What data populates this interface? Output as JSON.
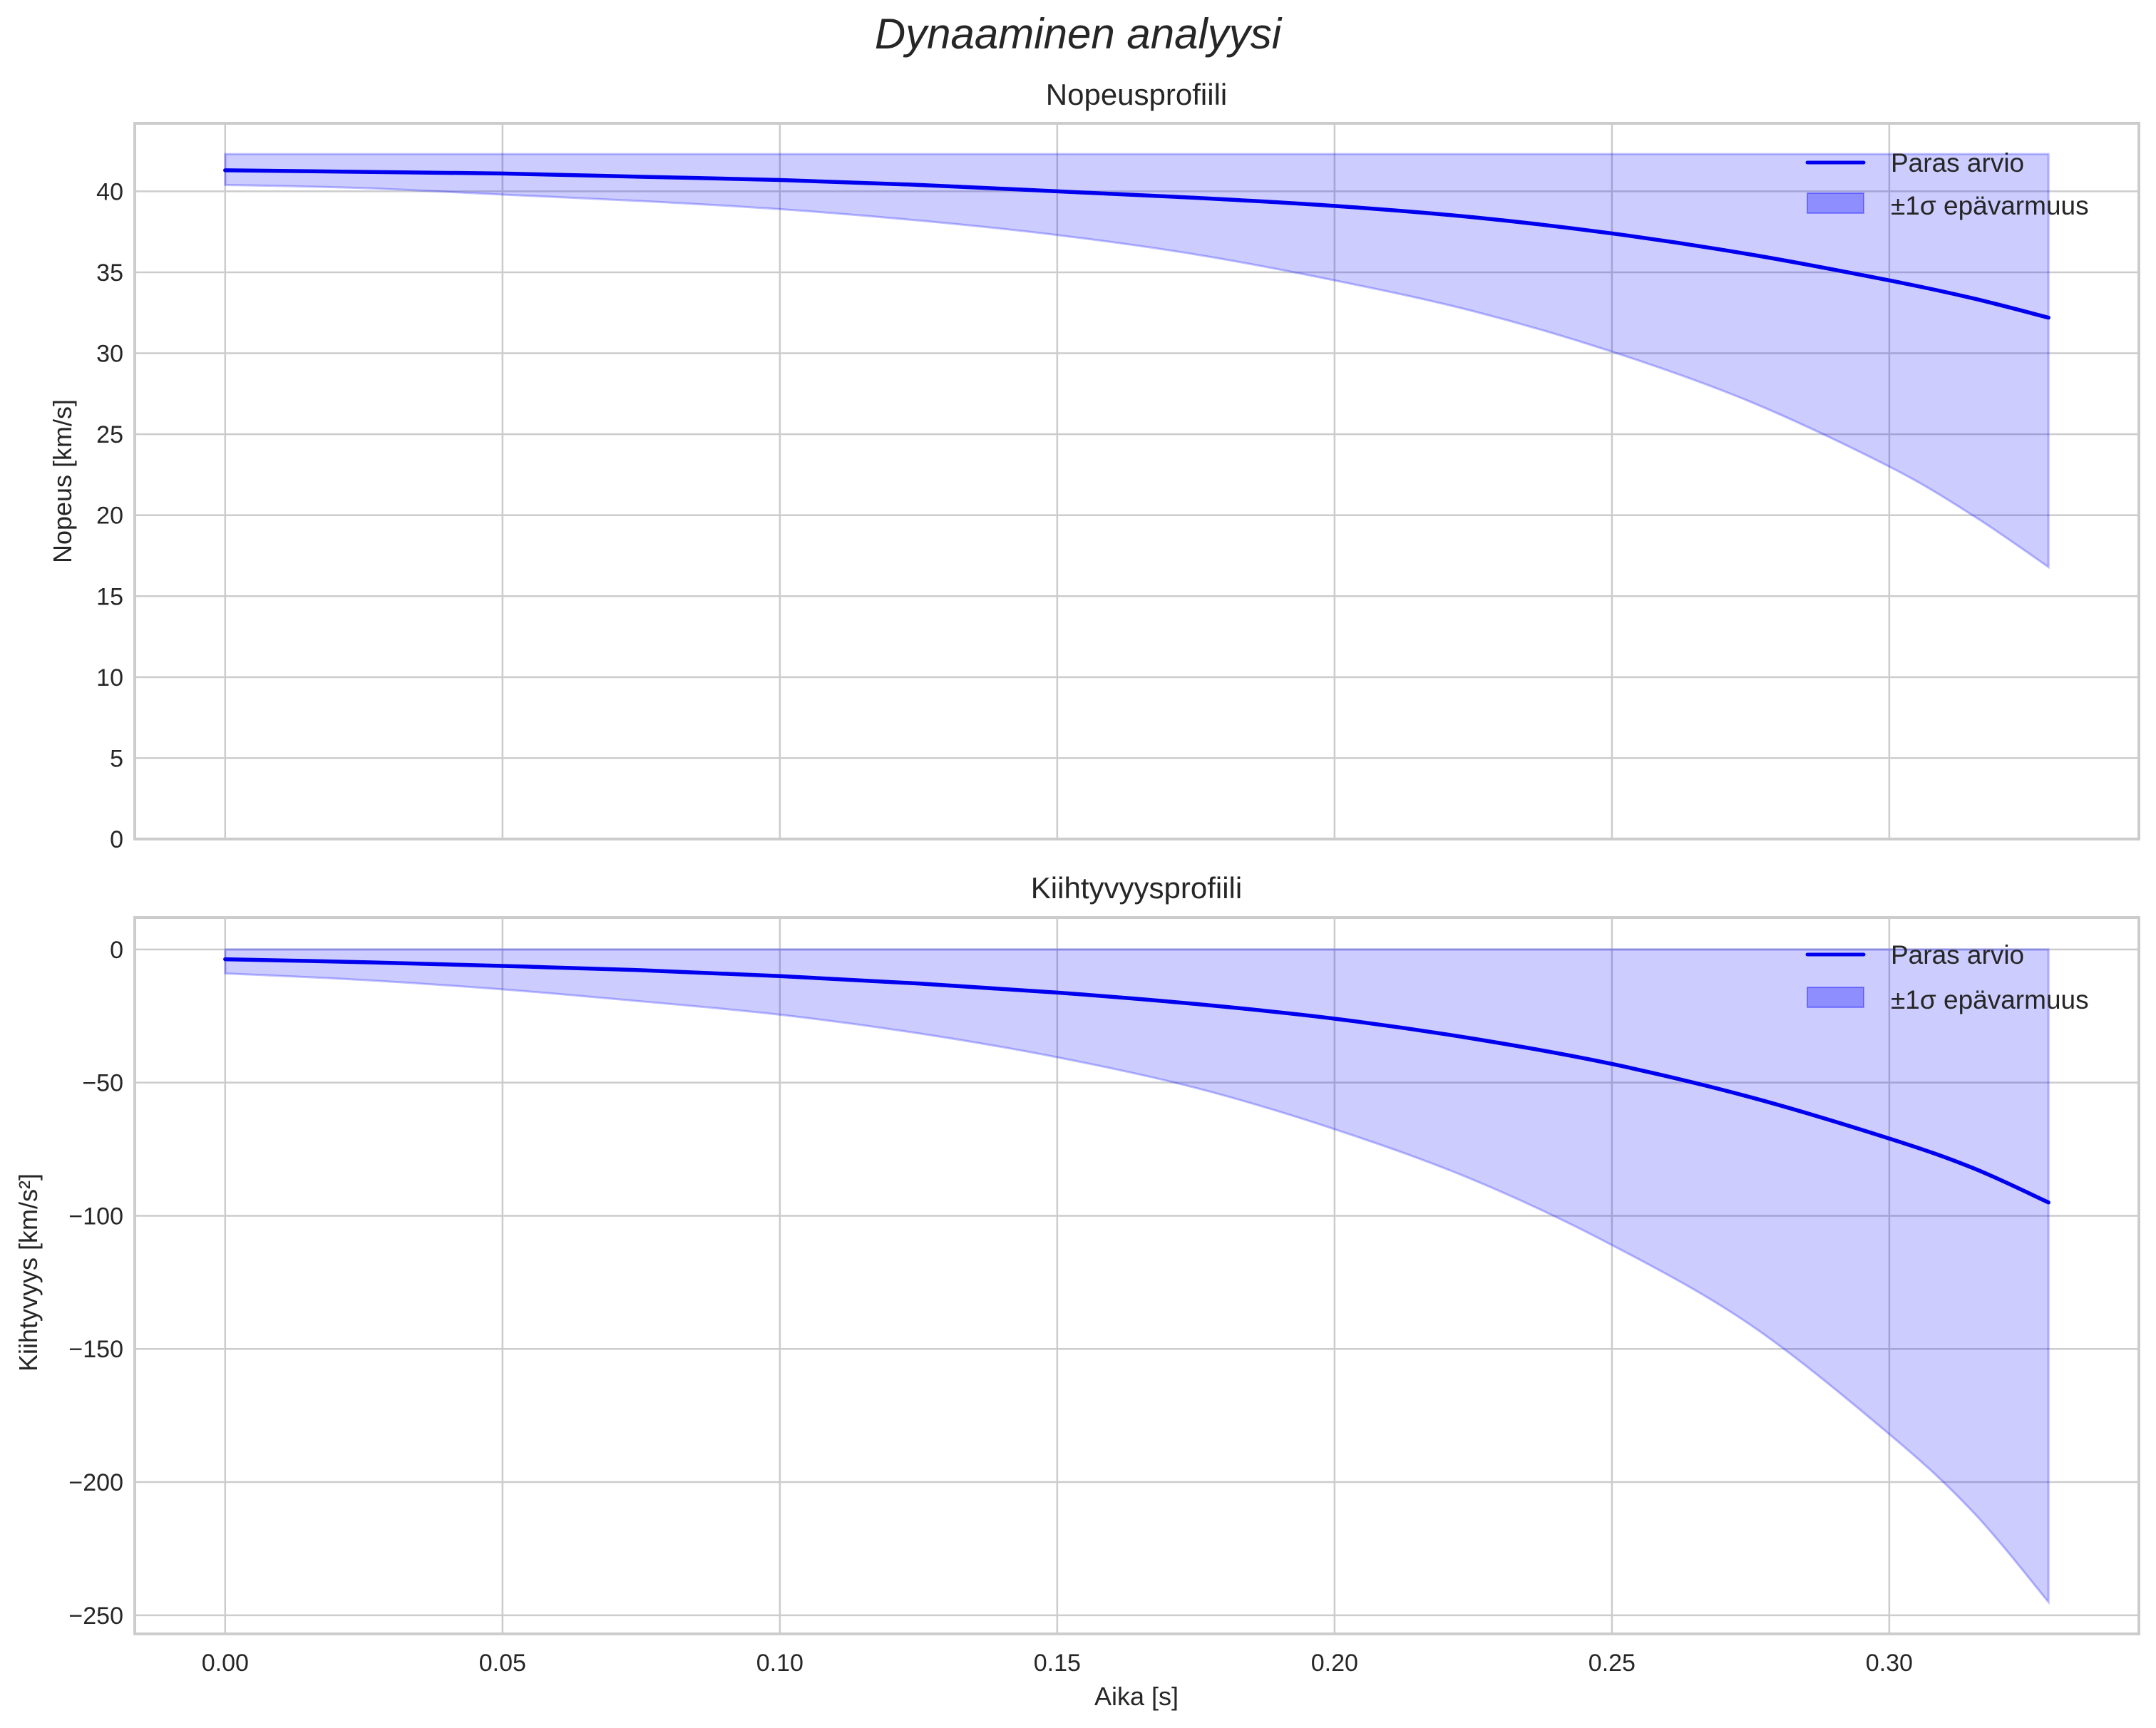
{
  "figure": {
    "suptitle": "Dynaaminen analyysi",
    "xlabel": "Aika [s]"
  },
  "colors": {
    "line": "#0000ee",
    "band_fill": "#0000ff",
    "band_alpha": 0.2,
    "grid": "#cccccc",
    "spine": "#cccccc",
    "text": "#262626"
  },
  "legend": {
    "line_label": "Paras arvio",
    "band_label": "±1σ epävarmuus",
    "position": "upper right"
  },
  "chart_data": [
    {
      "type": "line",
      "title": "Nopeusprofiili",
      "xlabel": "",
      "ylabel": "Nopeus [km/s]",
      "xlim": [
        -0.0163,
        0.345
      ],
      "ylim": [
        0,
        44.2
      ],
      "grid": true,
      "xticks": [
        0.0,
        0.05,
        0.1,
        0.15,
        0.2,
        0.25,
        0.3
      ],
      "xtick_labels": [],
      "yticks": [
        0,
        5,
        10,
        15,
        20,
        25,
        30,
        35,
        40
      ],
      "ytick_labels": [
        "0",
        "5",
        "10",
        "15",
        "20",
        "25",
        "30",
        "35",
        "40"
      ],
      "x": [
        0.0,
        0.025,
        0.05,
        0.075,
        0.1,
        0.125,
        0.15,
        0.175,
        0.2,
        0.225,
        0.25,
        0.275,
        0.3,
        0.315,
        0.3287
      ],
      "series": [
        {
          "name": "Paras arvio",
          "kind": "line",
          "values": [
            41.3,
            41.2,
            41.1,
            40.9,
            40.7,
            40.4,
            40.0,
            39.6,
            39.1,
            38.4,
            37.4,
            36.1,
            34.5,
            33.4,
            32.2
          ]
        },
        {
          "name": "±1σ epävarmuus (upper)",
          "kind": "band_upper",
          "values": [
            42.3,
            42.3,
            42.3,
            42.3,
            42.3,
            42.3,
            42.3,
            42.3,
            42.3,
            42.3,
            42.3,
            42.3,
            42.3,
            42.3,
            42.3
          ]
        },
        {
          "name": "±1σ epävarmuus (lower)",
          "kind": "band_lower",
          "values": [
            40.4,
            40.2,
            39.8,
            39.4,
            38.9,
            38.2,
            37.3,
            36.1,
            34.5,
            32.6,
            30.1,
            27.0,
            23.0,
            20.0,
            16.8
          ]
        }
      ]
    },
    {
      "type": "line",
      "title": "Kiihtyvyysprofiili",
      "xlabel": "Aika [s]",
      "ylabel": "Kiihtyvyys [km/s²]",
      "xlim": [
        -0.0163,
        0.345
      ],
      "ylim": [
        -257,
        12
      ],
      "grid": true,
      "xticks": [
        0.0,
        0.05,
        0.1,
        0.15,
        0.2,
        0.25,
        0.3
      ],
      "xtick_labels": [
        "0.00",
        "0.05",
        "0.10",
        "0.15",
        "0.20",
        "0.25",
        "0.30"
      ],
      "yticks": [
        0,
        -50,
        -100,
        -150,
        -200,
        -250
      ],
      "ytick_labels": [
        "0",
        "−50",
        "−100",
        "−150",
        "−200",
        "−250"
      ],
      "x": [
        0.0,
        0.025,
        0.05,
        0.075,
        0.1,
        0.125,
        0.15,
        0.175,
        0.2,
        0.225,
        0.25,
        0.275,
        0.3,
        0.315,
        0.3287
      ],
      "series": [
        {
          "name": "Paras arvio",
          "kind": "line",
          "values": [
            -3.7,
            -4.8,
            -6.2,
            -7.8,
            -10.0,
            -12.8,
            -16.2,
            -20.5,
            -26.0,
            -33.5,
            -43.0,
            -55.5,
            -71.0,
            -82.0,
            -95.0
          ]
        },
        {
          "name": "±1σ epävarmuus (upper)",
          "kind": "band_upper",
          "values": [
            0,
            0,
            0,
            0,
            0,
            0,
            0,
            0,
            0,
            0,
            0,
            0,
            0,
            0,
            0
          ]
        },
        {
          "name": "±1σ epävarmuus (lower)",
          "kind": "band_lower",
          "values": [
            -9.0,
            -11.5,
            -15.0,
            -19.5,
            -24.5,
            -31.5,
            -40.5,
            -52.0,
            -67.5,
            -86.5,
            -111.0,
            -141.0,
            -182.0,
            -211.0,
            -245.0
          ]
        }
      ]
    }
  ]
}
